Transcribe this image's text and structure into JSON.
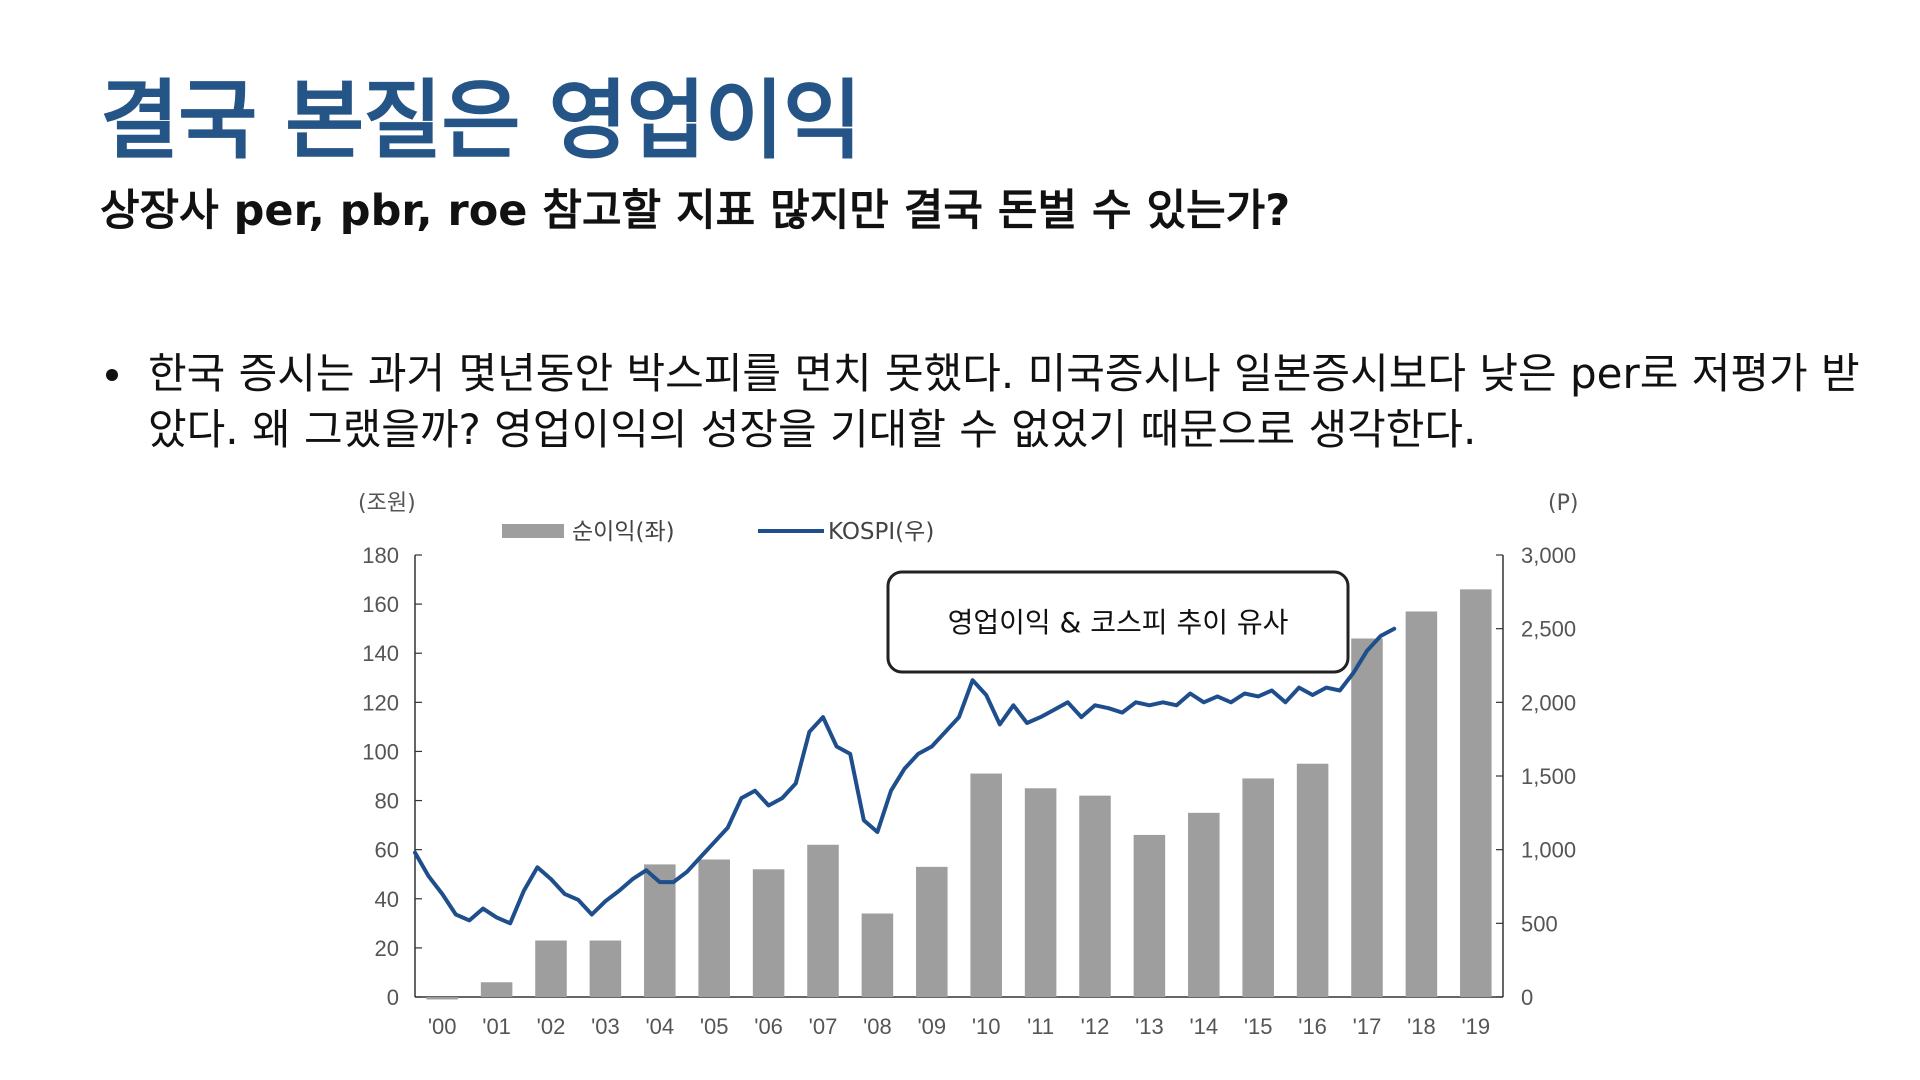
{
  "slide": {
    "title": "결국 본질은 영업이익",
    "subtitle": "상장사 per, pbr, roe 참고할 지표 많지만 결국 돈벌 수 있는가?",
    "bullets": [
      "한국 증시는 과거 몇년동안 박스피를 면치 못했다. 미국증시나 일본증시보다 낮은 per로 저평가 받았다. 왜 그랬을까? 영업이익의 성장을 기대할 수 없었기 때문으로 생각한다."
    ]
  },
  "chart_data": {
    "type": "bar",
    "categories": [
      "'00",
      "'01",
      "'02",
      "'03",
      "'04",
      "'05",
      "'06",
      "'07",
      "'08",
      "'09",
      "'10",
      "'11",
      "'12",
      "'13",
      "'14",
      "'15",
      "'16",
      "'17",
      "'18",
      "'19"
    ],
    "left_axis": {
      "unit": "(조원)",
      "ylim": [
        0,
        180
      ],
      "ticks": [
        0,
        20,
        40,
        60,
        80,
        100,
        120,
        140,
        160,
        180
      ]
    },
    "right_axis": {
      "unit": "(P)",
      "ylim": [
        0,
        3000
      ],
      "ticks": [
        0,
        500,
        1000,
        1500,
        2000,
        2500,
        3000
      ],
      "tick_labels": [
        "0",
        "500",
        "1,000",
        "1,500",
        "2,000",
        "2,500",
        "3,000"
      ]
    },
    "series": [
      {
        "name": "순이익(좌)",
        "type": "bar",
        "axis": "left",
        "color": "#9e9e9e",
        "values": [
          -1,
          6,
          23,
          23,
          54,
          56,
          52,
          62,
          34,
          53,
          91,
          85,
          82,
          66,
          75,
          89,
          95,
          146,
          157,
          166
        ]
      },
      {
        "name": "KOSPI(우)",
        "type": "line",
        "axis": "right",
        "color": "#1f4e8c",
        "x": [
          0.0,
          0.25,
          0.5,
          0.75,
          1.0,
          1.25,
          1.5,
          1.75,
          2.0,
          2.25,
          2.5,
          2.75,
          3.0,
          3.25,
          3.5,
          3.75,
          4.0,
          4.25,
          4.5,
          4.75,
          5.0,
          5.25,
          5.5,
          5.75,
          6.0,
          6.25,
          6.5,
          6.75,
          7.0,
          7.25,
          7.5,
          7.75,
          8.0,
          8.25,
          8.5,
          8.75,
          9.0,
          9.25,
          9.5,
          9.75,
          10.0,
          10.25,
          10.5,
          10.75,
          11.0,
          11.25,
          11.5,
          11.75,
          12.0,
          12.25,
          12.5,
          12.75,
          13.0,
          13.25,
          13.5,
          13.75,
          14.0,
          14.25,
          14.5,
          14.75,
          15.0,
          15.25,
          15.5,
          15.75,
          16.0,
          16.25,
          16.5,
          16.75,
          17.0,
          17.25,
          17.5,
          17.75,
          18.0
        ],
        "values": [
          980,
          820,
          700,
          560,
          520,
          600,
          540,
          500,
          720,
          880,
          800,
          700,
          660,
          560,
          650,
          720,
          800,
          860,
          780,
          780,
          850,
          950,
          1050,
          1150,
          1350,
          1400,
          1300,
          1350,
          1450,
          1800,
          1900,
          1700,
          1650,
          1200,
          1120,
          1400,
          1550,
          1650,
          1700,
          1800,
          1900,
          2150,
          2050,
          1850,
          1980,
          1860,
          1900,
          1950,
          2000,
          1900,
          1980,
          1960,
          1930,
          2000,
          1980,
          2000,
          1980,
          2060,
          2000,
          2040,
          2000,
          2060,
          2040,
          2080,
          2000,
          2100,
          2050,
          2100,
          2080,
          2200,
          2350,
          2450,
          2500
        ]
      }
    ],
    "annotation": "영업이익 & 코스피 추이 유사"
  }
}
